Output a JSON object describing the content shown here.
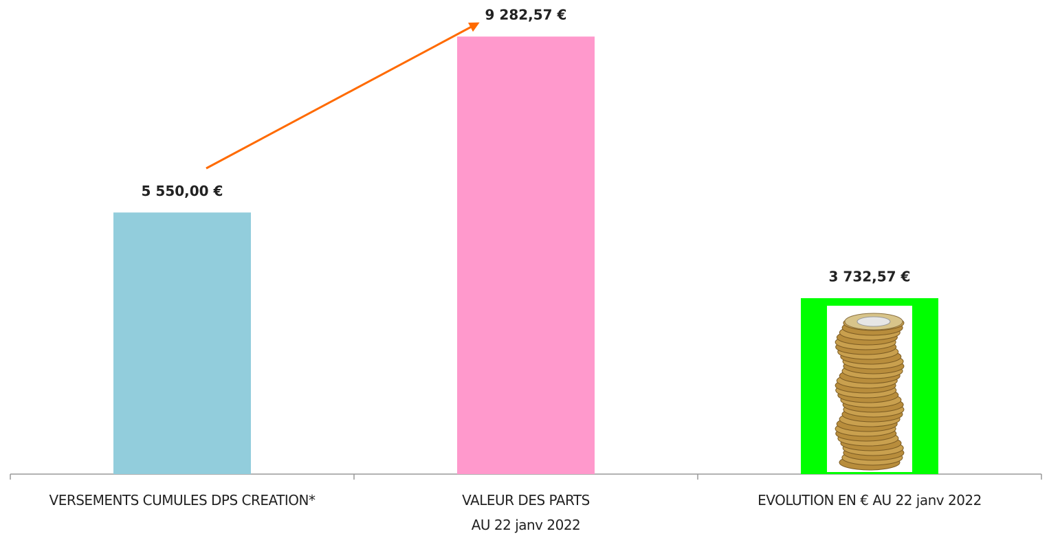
{
  "chart_data": {
    "type": "bar",
    "categories": [
      "VERSEMENTS CUMULES DPS CREATION*",
      "VALEUR DES PARTS\nAU 22 janv 2022",
      "EVOLUTION EN € AU 22 janv 2022"
    ],
    "values": [
      5550.0,
      9282.57,
      3732.57
    ],
    "value_labels": [
      "5 550,00 €",
      "9 282,57 €",
      "3 732,57 €"
    ],
    "colors": [
      "#92cddc",
      "#ff99cc",
      "#00ff00"
    ],
    "ylim": [
      0,
      10000
    ]
  }
}
